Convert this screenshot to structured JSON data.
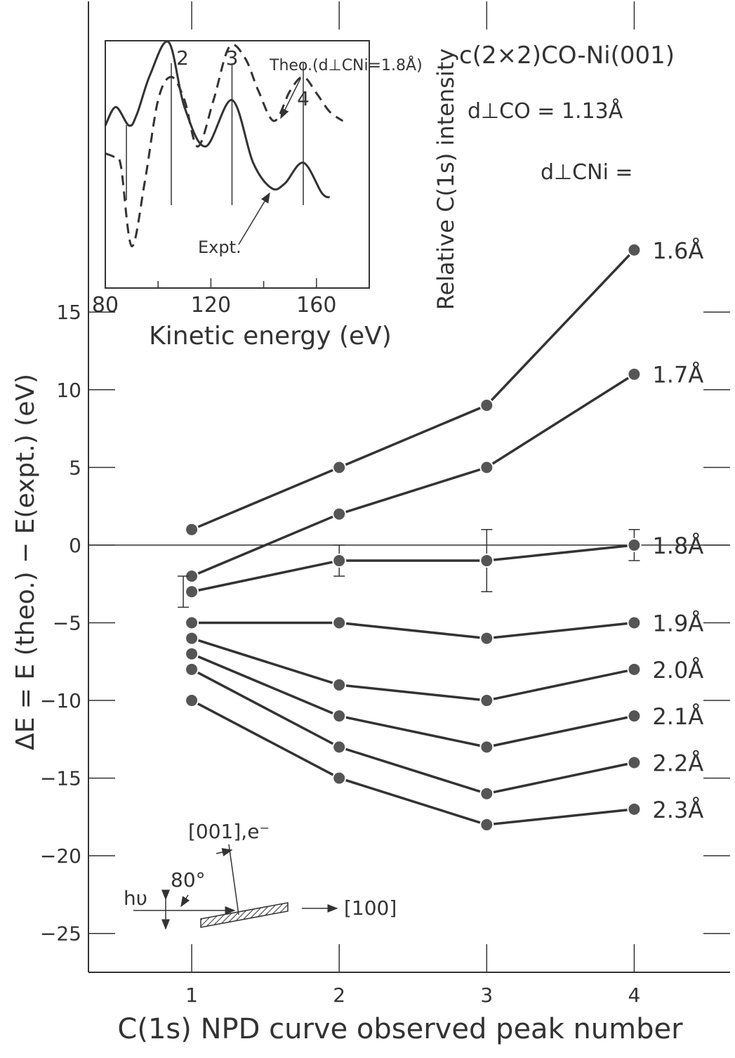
{
  "chart_data": {
    "type": "line",
    "title": "c(2×2)CO-Ni(001)",
    "annotation_dco": "d⊥CO = 1.13Å",
    "annotation_dcni": "d⊥CNi =",
    "xlabel": "C(1s) NPD curve observed peak number",
    "ylabel": "ΔE = E (theo.) − E(expt.) (eV)",
    "x": [
      1,
      2,
      3,
      4
    ],
    "xlim": [
      0.3,
      4.65
    ],
    "ylim": [
      -27.5,
      35
    ],
    "x_ticks": [
      1,
      2,
      3,
      4
    ],
    "y_ticks": [
      15,
      10,
      5,
      0,
      -5,
      -10,
      -15,
      -20,
      -25
    ],
    "series": [
      {
        "name": "1.6Å",
        "values": [
          1,
          5,
          9,
          19
        ]
      },
      {
        "name": "1.7Å",
        "values": [
          -2,
          2,
          5,
          11
        ]
      },
      {
        "name": "1.8Å",
        "values": [
          -3,
          -1,
          -1,
          0
        ],
        "error": [
          1,
          1,
          2,
          1
        ]
      },
      {
        "name": "1.9Å",
        "values": [
          -5,
          -5,
          -6,
          -5
        ]
      },
      {
        "name": "2.0Å",
        "values": [
          -6,
          -9,
          -10,
          -8
        ]
      },
      {
        "name": "2.1Å",
        "values": [
          -7,
          -11,
          -13,
          -11
        ]
      },
      {
        "name": "2.2Å",
        "values": [
          -8,
          -13,
          -16,
          -14
        ]
      },
      {
        "name": "2.3Å",
        "values": [
          -10,
          -15,
          -18,
          -17
        ]
      }
    ],
    "inset": {
      "type": "line",
      "xlabel": "Kinetic energy (eV)",
      "ylabel": "Relative C(1s) intensity",
      "xlim": [
        80,
        180
      ],
      "x_ticks": [
        80,
        120,
        160
      ],
      "peak_labels": [
        "2",
        "3",
        "4"
      ],
      "series": [
        {
          "name": "Expt.",
          "style": "solid",
          "x": [
            80,
            84,
            89,
            92,
            97,
            104,
            110,
            118,
            128,
            136,
            143,
            148,
            155,
            162,
            165
          ],
          "values": [
            0.64,
            0.72,
            0.64,
            0.69,
            0.86,
            1.0,
            0.72,
            0.55,
            0.75,
            0.48,
            0.37,
            0.39,
            0.48,
            0.35,
            0.33
          ]
        },
        {
          "name": "Theo.(d⊥CNi=1.8Å)",
          "style": "dashed",
          "x": [
            80,
            84,
            86,
            90,
            95,
            100,
            105,
            110,
            115,
            121,
            127,
            133,
            138,
            144,
            150,
            155,
            160,
            165,
            170
          ],
          "values": [
            0.52,
            0.5,
            0.46,
            0.12,
            0.4,
            0.75,
            0.85,
            0.75,
            0.55,
            0.75,
            0.98,
            0.93,
            0.79,
            0.66,
            0.79,
            0.85,
            0.78,
            0.7,
            0.66
          ]
        }
      ]
    }
  },
  "colors": {
    "ink": "#333333",
    "marker": "#555555"
  },
  "diagram": {
    "hv_label": "hυ",
    "angle_label": "80°",
    "direction_001": "[001],e⁻",
    "direction_100": "[100]"
  }
}
